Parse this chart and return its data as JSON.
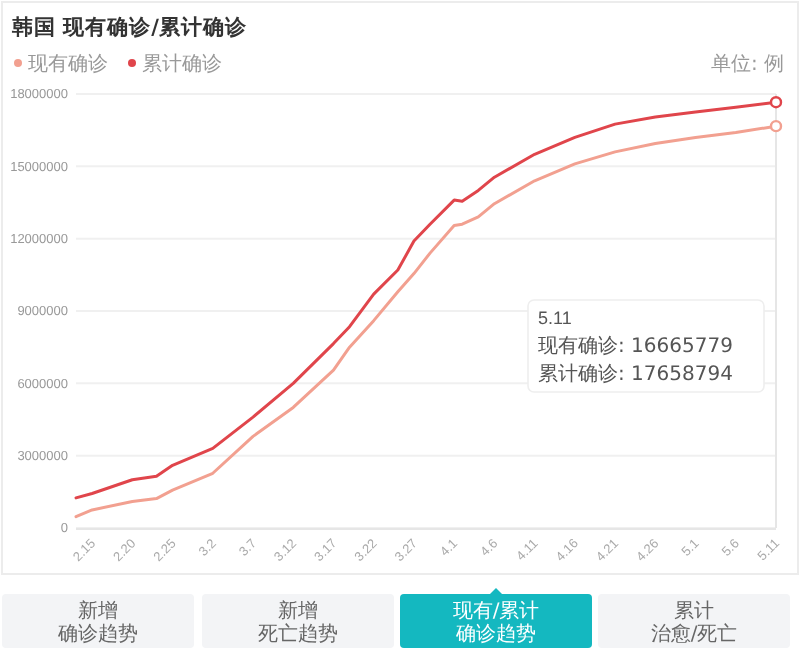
{
  "chart_data": {
    "type": "line",
    "title": "韩国 现有确诊/累计确诊",
    "x": [
      "--02-13",
      "--02-15",
      "--02-20",
      "--02-23",
      "--02-25",
      "--03-02",
      "--03-07",
      "--03-12",
      "--03-17",
      "--03-19",
      "--03-22",
      "--03-25",
      "--03-27",
      "--03-29",
      "--04-01",
      "--04-02",
      "--04-04",
      "--04-06",
      "--04-11",
      "--04-16",
      "--04-21",
      "--04-26",
      "--05-01",
      "--05-06",
      "--05-11"
    ],
    "xlim": [
      "--02-13",
      "--05-11"
    ],
    "xticks": [
      {
        "value": "--02-15",
        "label": "2.15"
      },
      {
        "value": "--02-20",
        "label": "2.20"
      },
      {
        "value": "--02-25",
        "label": "2.25"
      },
      {
        "value": "--03-02",
        "label": "3.2"
      },
      {
        "value": "--03-07",
        "label": "3.7"
      },
      {
        "value": "--03-12",
        "label": "3.12"
      },
      {
        "value": "--03-17",
        "label": "3.17"
      },
      {
        "value": "--03-22",
        "label": "3.22"
      },
      {
        "value": "--03-27",
        "label": "3.27"
      },
      {
        "value": "--04-01",
        "label": "4.1"
      },
      {
        "value": "--04-06",
        "label": "4.6"
      },
      {
        "value": "--04-11",
        "label": "4.11"
      },
      {
        "value": "--04-16",
        "label": "4.16"
      },
      {
        "value": "--04-21",
        "label": "4.21"
      },
      {
        "value": "--04-26",
        "label": "4.26"
      },
      {
        "value": "--05-01",
        "label": "5.1"
      },
      {
        "value": "--05-06",
        "label": "5.6"
      },
      {
        "value": "--05-11",
        "label": "5.11"
      }
    ],
    "ylim": [
      0,
      18000000
    ],
    "yticks": [
      0,
      3000000,
      6000000,
      9000000,
      12000000,
      15000000,
      18000000
    ],
    "grid": "y",
    "legend": "top left",
    "marker": "none",
    "line_style": "solid",
    "series": [
      {
        "name": "现有确诊",
        "color": "#f2a090",
        "values": [
          470000,
          750000,
          1100000,
          1220000,
          1570000,
          2270000,
          3800000,
          5000000,
          6550000,
          7500000,
          8600000,
          9800000,
          10550000,
          11400000,
          12550000,
          12600000,
          12900000,
          13450000,
          14400000,
          15100000,
          15600000,
          15950000,
          16200000,
          16400000,
          16665779
        ]
      },
      {
        "name": "累计确诊",
        "color": "#e0454b",
        "values": [
          1250000,
          1430000,
          2000000,
          2150000,
          2600000,
          3300000,
          4600000,
          6000000,
          7650000,
          8350000,
          9700000,
          10700000,
          11900000,
          12600000,
          13600000,
          13550000,
          14000000,
          14550000,
          15500000,
          16200000,
          16750000,
          17050000,
          17250000,
          17450000,
          17658794
        ]
      }
    ],
    "annotations": [
      "单位: 例",
      "5.11",
      "现有确诊: 16665779",
      "累计确诊: 17658794",
      "新增",
      "确诊趋势",
      "新增",
      "死亡趋势",
      "现有/累计",
      "确诊趋势",
      "累计",
      "治愈/死亡"
    ]
  }
}
